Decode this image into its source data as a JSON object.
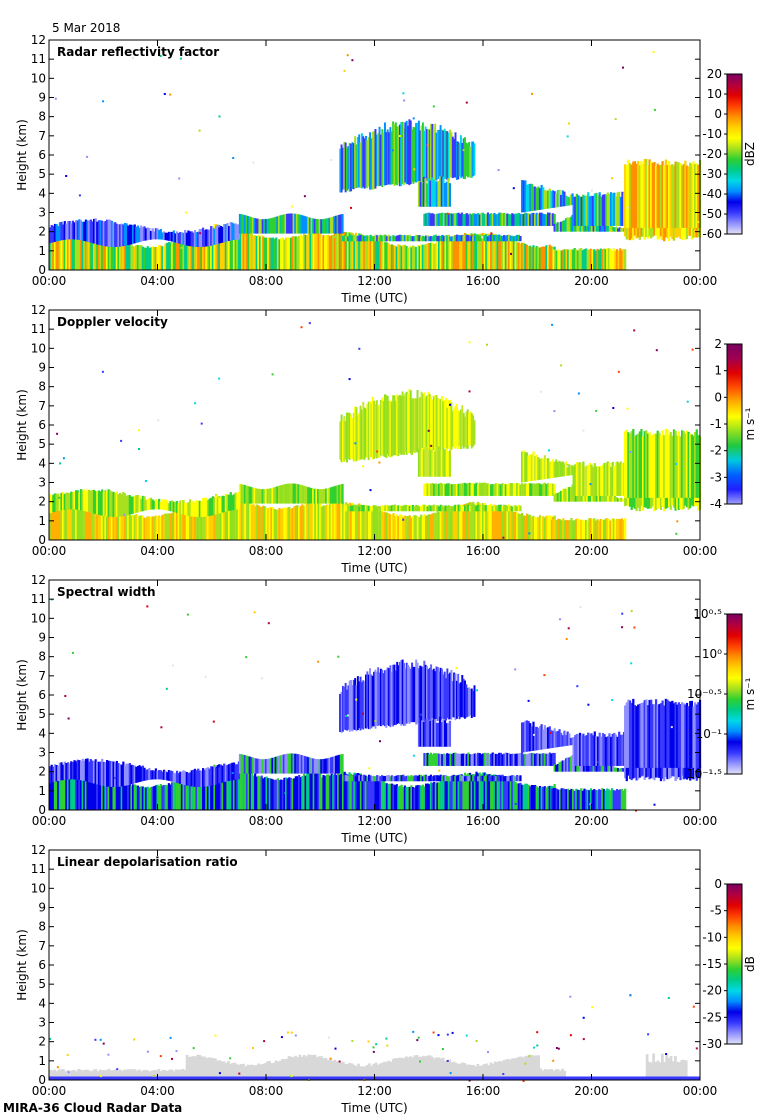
{
  "date_label": "5 Mar 2018",
  "footer_label": "MIRA-36 Cloud Radar Data",
  "colors": {
    "rainbow": [
      "#e2e2f8",
      "#9090ff",
      "#3838ff",
      "#0000e8",
      "#0090ff",
      "#00d8e8",
      "#00cc88",
      "#30d030",
      "#a8e020",
      "#ffff00",
      "#ffd000",
      "#ff9000",
      "#ff4000",
      "#e00000",
      "#b00040",
      "#7a0060"
    ],
    "ground_gray": "#d8d8d8",
    "frame": "#000000"
  },
  "chart_data": [
    {
      "type": "heatmap",
      "title": "Radar reflectivity factor",
      "xlabel": "Time (UTC)",
      "ylabel": "Height (km)",
      "xlim": [
        0,
        24
      ],
      "ylim": [
        0,
        12
      ],
      "xticks": [
        "00:00",
        "04:00",
        "08:00",
        "12:00",
        "16:00",
        "20:00",
        "00:00"
      ],
      "yticks": [
        "0",
        "1",
        "2",
        "3",
        "4",
        "5",
        "6",
        "7",
        "8",
        "9",
        "10",
        "11",
        "12"
      ],
      "colorbar": {
        "label": "dBZ",
        "scale": "linear",
        "range": [
          -60,
          20
        ],
        "ticks": [
          "20",
          "10",
          "0",
          "-10",
          "-20",
          "-30",
          "-40",
          "-50",
          "-60"
        ]
      }
    },
    {
      "type": "heatmap",
      "title": "Doppler velocity",
      "xlabel": "Time (UTC)",
      "ylabel": "Height (km)",
      "xlim": [
        0,
        24
      ],
      "ylim": [
        0,
        12
      ],
      "xticks": [
        "00:00",
        "04:00",
        "08:00",
        "12:00",
        "16:00",
        "20:00",
        "00:00"
      ],
      "yticks": [
        "0",
        "1",
        "2",
        "3",
        "4",
        "5",
        "6",
        "7",
        "8",
        "9",
        "10",
        "11",
        "12"
      ],
      "colorbar": {
        "label": "m s⁻¹",
        "scale": "linear",
        "range": [
          -4,
          2
        ],
        "ticks": [
          "2",
          "1",
          "0",
          "-1",
          "-2",
          "-3",
          "-4"
        ]
      }
    },
    {
      "type": "heatmap",
      "title": "Spectral width",
      "xlabel": "Time (UTC)",
      "ylabel": "Height (km)",
      "xlim": [
        0,
        24
      ],
      "ylim": [
        0,
        12
      ],
      "xticks": [
        "00:00",
        "04:00",
        "08:00",
        "12:00",
        "16:00",
        "20:00",
        "00:00"
      ],
      "yticks": [
        "0",
        "1",
        "2",
        "3",
        "4",
        "5",
        "6",
        "7",
        "8",
        "9",
        "10",
        "11",
        "12"
      ],
      "colorbar": {
        "label": "m s⁻¹",
        "scale": "log10",
        "range": [
          -1.5,
          0.5
        ],
        "ticks": [
          "10⁰·⁵",
          "10⁰",
          "10⁻⁰·⁵",
          "10⁻¹",
          "10⁻¹·⁵"
        ]
      }
    },
    {
      "type": "heatmap",
      "title": "Linear depolarisation ratio",
      "xlabel": "Time (UTC)",
      "ylabel": "Height (km)",
      "xlim": [
        0,
        24
      ],
      "ylim": [
        0,
        12
      ],
      "xticks": [
        "00:00",
        "04:00",
        "08:00",
        "12:00",
        "16:00",
        "20:00",
        "00:00"
      ],
      "yticks": [
        "0",
        "1",
        "2",
        "3",
        "4",
        "5",
        "6",
        "7",
        "8",
        "9",
        "10",
        "11",
        "12"
      ],
      "colorbar": {
        "label": "dB",
        "scale": "linear",
        "range": [
          -30,
          0
        ],
        "ticks": [
          "0",
          "-5",
          "-10",
          "-15",
          "-20",
          "-25",
          "-30"
        ]
      }
    }
  ]
}
